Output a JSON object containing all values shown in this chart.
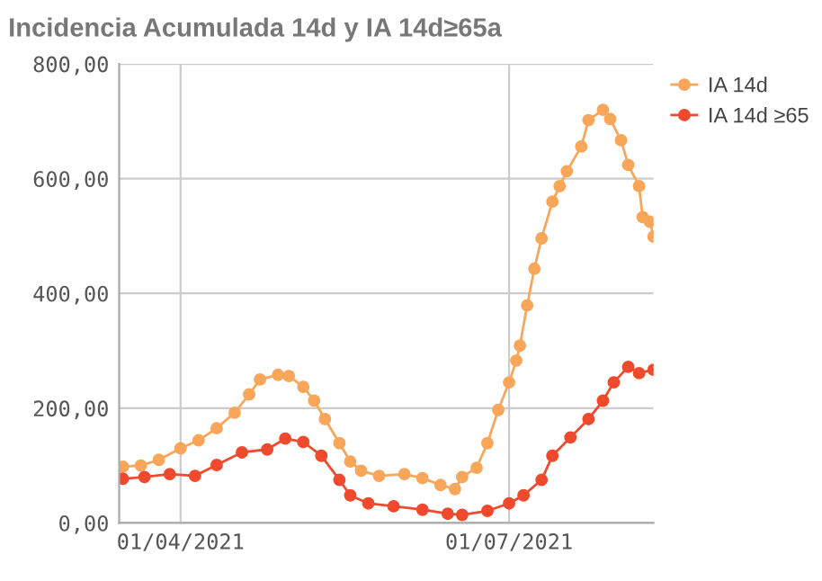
{
  "chart_data": {
    "type": "line",
    "title": "Incidencia Acumulada 14d y IA 14d≥65a",
    "marker": "circle",
    "line_style": "solid",
    "grid": true,
    "legend": "top right",
    "xlim": [
      "2021-03-15",
      "2021-08-10"
    ],
    "xticks": [
      {
        "value": "2021-04-01",
        "label": "01/04/2021"
      },
      {
        "value": "2021-07-01",
        "label": "01/07/2021"
      }
    ],
    "ylim": [
      0,
      800
    ],
    "yticks": [
      {
        "value": 0,
        "label": "0,00"
      },
      {
        "value": 200,
        "label": "200,00"
      },
      {
        "value": 400,
        "label": "400,00"
      },
      {
        "value": 600,
        "label": "600,00"
      },
      {
        "value": 800,
        "label": "800,00"
      }
    ],
    "series": [
      {
        "name": "IA 14d",
        "color": "#f8a65a",
        "x": [
          "2021-03-16",
          "2021-03-21",
          "2021-03-26",
          "2021-04-01",
          "2021-04-06",
          "2021-04-11",
          "2021-04-16",
          "2021-04-20",
          "2021-04-23",
          "2021-04-28",
          "2021-05-01",
          "2021-05-05",
          "2021-05-08",
          "2021-05-11",
          "2021-05-15",
          "2021-05-18",
          "2021-05-21",
          "2021-05-26",
          "2021-06-02",
          "2021-06-07",
          "2021-06-12",
          "2021-06-16",
          "2021-06-18",
          "2021-06-22",
          "2021-06-25",
          "2021-06-28",
          "2021-07-01",
          "2021-07-03",
          "2021-07-04",
          "2021-07-06",
          "2021-07-08",
          "2021-07-10",
          "2021-07-13",
          "2021-07-15",
          "2021-07-17",
          "2021-07-21",
          "2021-07-23",
          "2021-07-27",
          "2021-07-29",
          "2021-08-01",
          "2021-08-03",
          "2021-08-06",
          "2021-08-07",
          "2021-08-09",
          "2021-08-10"
        ],
        "values": [
          98,
          100,
          110,
          130,
          144,
          165,
          192,
          224,
          250,
          258,
          256,
          237,
          213,
          181,
          139,
          107,
          91,
          82,
          85,
          78,
          66,
          59,
          80,
          96,
          139,
          197,
          245,
          283,
          309,
          379,
          443,
          496,
          560,
          587,
          613,
          656,
          702,
          720,
          704,
          667,
          624,
          587,
          533,
          525,
          499
        ]
      },
      {
        "name": "IA 14d ≥65",
        "color": "#f04a2e",
        "x": [
          "2021-03-16",
          "2021-03-22",
          "2021-03-29",
          "2021-04-05",
          "2021-04-11",
          "2021-04-18",
          "2021-04-25",
          "2021-04-30",
          "2021-05-05",
          "2021-05-10",
          "2021-05-15",
          "2021-05-18",
          "2021-05-23",
          "2021-05-30",
          "2021-06-07",
          "2021-06-14",
          "2021-06-18",
          "2021-06-25",
          "2021-07-01",
          "2021-07-05",
          "2021-07-10",
          "2021-07-13",
          "2021-07-18",
          "2021-07-23",
          "2021-07-27",
          "2021-07-30",
          "2021-08-03",
          "2021-08-06",
          "2021-08-10"
        ],
        "values": [
          77,
          80,
          85,
          82,
          101,
          123,
          128,
          147,
          141,
          117,
          75,
          48,
          34,
          29,
          23,
          16,
          14,
          21,
          34,
          48,
          75,
          117,
          149,
          181,
          213,
          245,
          272,
          261,
          267
        ]
      }
    ]
  }
}
